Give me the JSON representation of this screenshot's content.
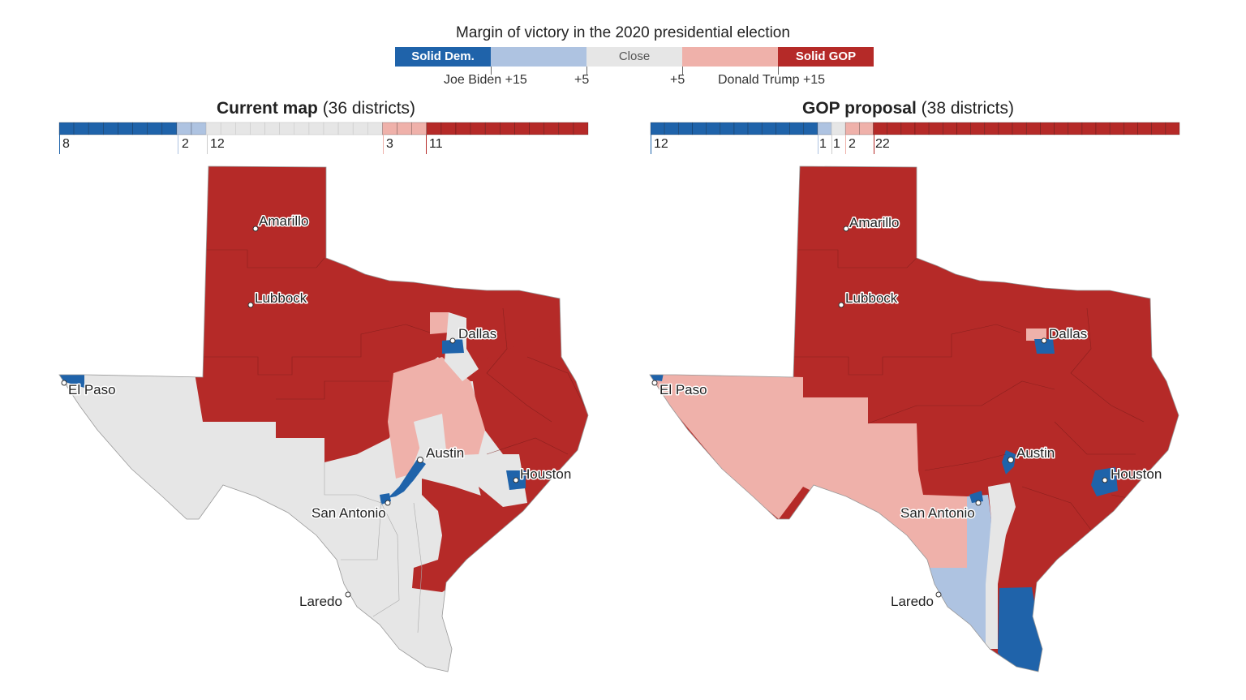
{
  "legend": {
    "title": "Margin of victory in the 2020 presidential election",
    "segments": [
      {
        "label": "Solid Dem.",
        "color": "#1f63aa"
      },
      {
        "label": "",
        "color": "#aec3e1"
      },
      {
        "label": "Close",
        "color": "#e6e6e6"
      },
      {
        "label": "",
        "color": "#efb1aa"
      },
      {
        "label": "Solid GOP",
        "color": "#b52a28"
      }
    ],
    "tick_labels": [
      "Joe Biden +15",
      "+5",
      "+5",
      "Donald Trump +15"
    ]
  },
  "panels": [
    {
      "title_bold": "Current map",
      "title_rest": " (36 districts)",
      "counts": [
        {
          "category": "Solid Dem.",
          "count": "8"
        },
        {
          "category": "Lean Dem.",
          "count": "2"
        },
        {
          "category": "Close",
          "count": "12"
        },
        {
          "category": "Lean GOP",
          "count": "3"
        },
        {
          "category": "Solid GOP",
          "count": "11"
        }
      ],
      "cities": [
        "Amarillo",
        "Lubbock",
        "Dallas",
        "El Paso",
        "Austin",
        "Houston",
        "San Antonio",
        "Laredo"
      ]
    },
    {
      "title_bold": "GOP proposal",
      "title_rest": " (38 districts)",
      "counts": [
        {
          "category": "Solid Dem.",
          "count": "12"
        },
        {
          "category": "Lean Dem.",
          "count": "1"
        },
        {
          "category": "Close",
          "count": "1"
        },
        {
          "category": "Lean GOP",
          "count": "2"
        },
        {
          "category": "Solid GOP",
          "count": "22"
        }
      ],
      "cities": [
        "Amarillo",
        "Lubbock",
        "Dallas",
        "El Paso",
        "Austin",
        "Houston",
        "San Antonio",
        "Laredo"
      ]
    }
  ],
  "colors": {
    "solid_dem": "#1f63aa",
    "lean_dem": "#aec3e1",
    "close": "#e6e6e6",
    "lean_gop": "#efb1aa",
    "solid_gop": "#b52a28"
  }
}
